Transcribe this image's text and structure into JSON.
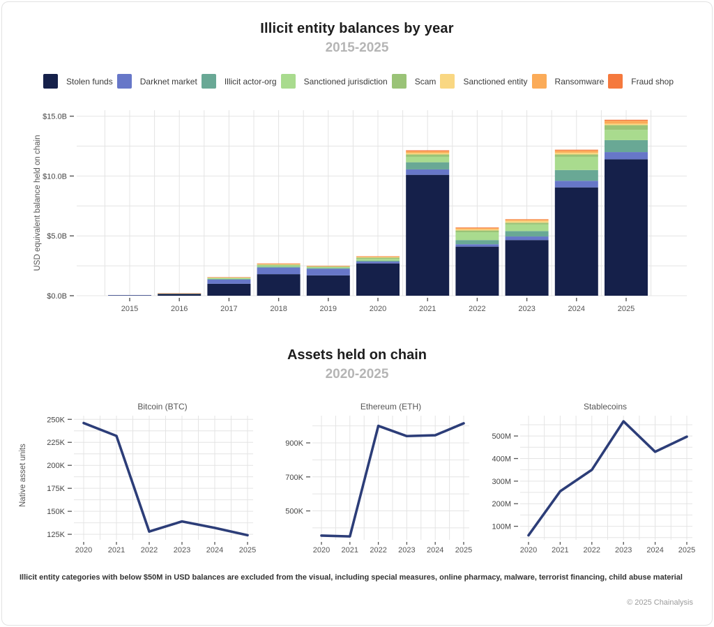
{
  "header": {
    "title": "Illicit entity balances by year",
    "subtitle": "2015-2025"
  },
  "assets_section": {
    "title": "Assets held on chain",
    "subtitle": "2020-2025",
    "ylabel": "Native asset units"
  },
  "footnote": "Illicit entity categories with below $50M in USD balances are excluded from the visual, including special measures, online pharmacy, malware, terrorist financing, child abuse material",
  "copyright": "© 2025 Chainalysis",
  "colors": {
    "grid": "#e4e4e4",
    "tick_text": "#444444",
    "subtitle_gray": "#b5b5b5",
    "line_navy": "#2c3d78"
  },
  "chart_data": [
    {
      "type": "bar",
      "stacked": true,
      "title": "Illicit entity balances by year",
      "subtitle": "2015-2025",
      "unit": "USD billions",
      "ylabel": "USD equivalent balance held on chain",
      "categories": [
        "2015",
        "2016",
        "2017",
        "2018",
        "2019",
        "2020",
        "2021",
        "2022",
        "2023",
        "2024",
        "2025"
      ],
      "series": [
        {
          "name": "Stolen funds",
          "color": "#15204a",
          "values": [
            0.04,
            0.15,
            1.0,
            1.8,
            1.7,
            2.7,
            10.1,
            4.1,
            4.65,
            9.05,
            11.4
          ]
        },
        {
          "name": "Darknet market",
          "color": "#6777c8",
          "values": [
            0.01,
            0.02,
            0.35,
            0.55,
            0.55,
            0.15,
            0.45,
            0.2,
            0.3,
            0.55,
            0.6
          ]
        },
        {
          "name": "Illicit actor-org",
          "color": "#69a895",
          "values": [
            0.0,
            0.01,
            0.05,
            0.08,
            0.06,
            0.08,
            0.6,
            0.35,
            0.45,
            0.9,
            1.0
          ]
        },
        {
          "name": "Sanctioned jurisdiction",
          "color": "#a9db8e",
          "values": [
            0.0,
            0.01,
            0.08,
            0.1,
            0.08,
            0.15,
            0.45,
            0.65,
            0.55,
            1.1,
            0.85
          ]
        },
        {
          "name": "Scam",
          "color": "#9ac377",
          "values": [
            0.0,
            0.005,
            0.02,
            0.06,
            0.04,
            0.1,
            0.2,
            0.15,
            0.15,
            0.2,
            0.4
          ]
        },
        {
          "name": "Sanctioned entity",
          "color": "#f9d782",
          "values": [
            0.0,
            0.005,
            0.02,
            0.04,
            0.03,
            0.05,
            0.12,
            0.1,
            0.15,
            0.15,
            0.12
          ]
        },
        {
          "name": "Ransomware",
          "color": "#fbab58",
          "values": [
            0.0,
            0.003,
            0.02,
            0.05,
            0.03,
            0.05,
            0.15,
            0.1,
            0.1,
            0.18,
            0.25
          ]
        },
        {
          "name": "Fraud shop",
          "color": "#f5793d",
          "values": [
            0.0,
            0.002,
            0.01,
            0.02,
            0.01,
            0.02,
            0.08,
            0.05,
            0.04,
            0.07,
            0.08
          ]
        }
      ],
      "yticks": [
        0,
        5,
        10,
        15
      ],
      "ytick_labels": [
        "$0.0B",
        "$5.0B",
        "$10.0B",
        "$15.0B"
      ],
      "ylim": [
        0,
        15.5
      ],
      "grid": true,
      "legend_position": "top"
    },
    {
      "type": "line",
      "title": "Bitcoin (BTC)",
      "x": [
        "2020",
        "2021",
        "2022",
        "2023",
        "2024",
        "2025"
      ],
      "values": [
        246000,
        232000,
        128000,
        139000,
        132000,
        124000
      ],
      "yticks": [
        125000,
        150000,
        175000,
        200000,
        225000,
        250000
      ],
      "ytick_labels": [
        "125K",
        "150K",
        "175K",
        "200K",
        "225K",
        "250K"
      ],
      "ylim": [
        119000,
        254000
      ],
      "line_color": "#2c3d78",
      "grid": true
    },
    {
      "type": "line",
      "title": "Ethereum (ETH)",
      "x": [
        "2020",
        "2021",
        "2022",
        "2023",
        "2024",
        "2025"
      ],
      "values": [
        355000,
        350000,
        1000000,
        940000,
        945000,
        1015000
      ],
      "yticks": [
        500000,
        700000,
        900000
      ],
      "ytick_labels": [
        "500K",
        "700K",
        "900K"
      ],
      "ylim": [
        330000,
        1060000
      ],
      "line_color": "#2c3d78",
      "grid": true
    },
    {
      "type": "line",
      "title": "Stablecoins",
      "x": [
        "2020",
        "2021",
        "2022",
        "2023",
        "2024",
        "2025"
      ],
      "values": [
        60000000,
        255000000,
        350000000,
        565000000,
        430000000,
        497000000
      ],
      "yticks": [
        100000000,
        200000000,
        300000000,
        400000000,
        500000000
      ],
      "ytick_labels": [
        "100M",
        "200M",
        "300M",
        "400M",
        "500M"
      ],
      "ylim": [
        40000000,
        590000000
      ],
      "line_color": "#2c3d78",
      "grid": true
    }
  ]
}
